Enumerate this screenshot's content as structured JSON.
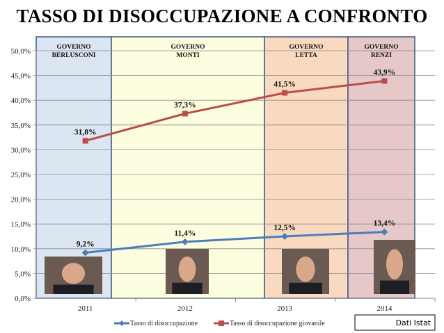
{
  "chart_data": {
    "type": "line",
    "title": "TASSO DI DISOCCUPAZIONE A CONFRONTO",
    "categories": [
      "2011",
      "2012",
      "2013",
      "2014"
    ],
    "ylim": [
      0,
      50
    ],
    "yticks": [
      "0,0%",
      "5,0%",
      "10,0%",
      "15,0%",
      "20,0%",
      "25,0%",
      "30,0%",
      "35,0%",
      "40,0%",
      "45,0%",
      "50,0%"
    ],
    "grid": true,
    "legend": "bottom",
    "series": [
      {
        "name": "Tasso di disoccupazione",
        "values": [
          9.2,
          11.4,
          12.5,
          13.4
        ],
        "labels": [
          "9,2%",
          "11,4%",
          "12,5%",
          "13,4%"
        ],
        "color": "#4a7ebb",
        "marker": "diamond"
      },
      {
        "name": "Tasso di disoccupazione giovanile",
        "values": [
          31.8,
          37.3,
          41.5,
          43.9
        ],
        "labels": [
          "31,8%",
          "37,3%",
          "41,5%",
          "43,9%"
        ],
        "color": "#be4b48",
        "marker": "square"
      }
    ],
    "bands": [
      {
        "label1": "GOVERNO",
        "label2": "BERLUSCONI",
        "color": "#dce6f2"
      },
      {
        "label1": "GOVERNO",
        "label2": "MONTI",
        "color": "#fdfde0"
      },
      {
        "label1": "GOVERNO",
        "label2": "LETTA",
        "color": "#f9d9bf"
      },
      {
        "label1": "GOVERNO",
        "label2": "RENZI",
        "color": "#e6c8c8"
      }
    ],
    "source": "Dati Istat"
  }
}
